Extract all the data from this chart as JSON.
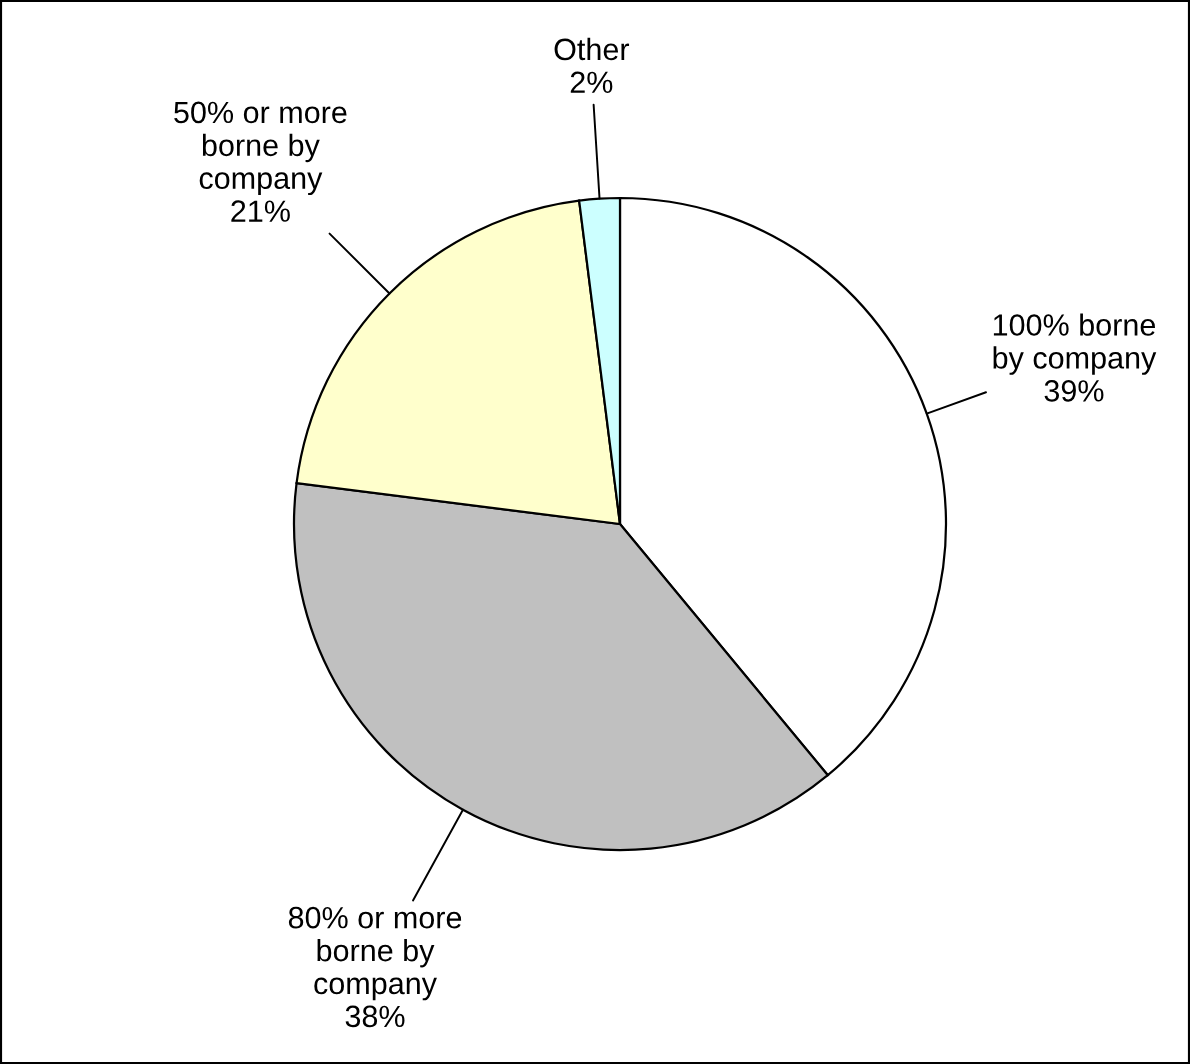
{
  "chart_data": {
    "type": "pie",
    "categories": [
      "100% borne\nby company",
      "80% or more\nborne by\ncompany",
      "50% or more\nborne by\ncompany",
      "Other"
    ],
    "values": [
      39,
      38,
      21,
      2
    ],
    "value_labels": [
      "39%",
      "38%",
      "21%",
      "2%"
    ],
    "colors": [
      "#ffffff",
      "#c0c0c0",
      "#ffffcc",
      "#ccffff"
    ],
    "legend": false
  }
}
